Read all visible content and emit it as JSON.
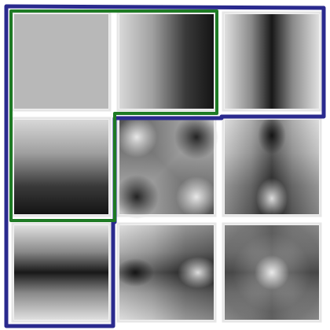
{
  "figure": {
    "description_type": "basis-function-grid",
    "rows": 3,
    "cols": 3,
    "tiles": [
      {
        "row": 0,
        "col": 0,
        "pattern": "constant"
      },
      {
        "row": 0,
        "col": 1,
        "pattern": "horizontal-gradient"
      },
      {
        "row": 0,
        "col": 2,
        "pattern": "horizontal-band"
      },
      {
        "row": 1,
        "col": 0,
        "pattern": "vertical-gradient"
      },
      {
        "row": 1,
        "col": 1,
        "pattern": "diagonal-product"
      },
      {
        "row": 1,
        "col": 2,
        "pattern": "band-times-gradient"
      },
      {
        "row": 2,
        "col": 0,
        "pattern": "vertical-band"
      },
      {
        "row": 2,
        "col": 1,
        "pattern": "gradient-times-band"
      },
      {
        "row": 2,
        "col": 2,
        "pattern": "band-product"
      }
    ],
    "groups": [
      {
        "name": "inner-group",
        "color": "#1e7a24",
        "tiles": [
          [
            0,
            0
          ],
          [
            0,
            1
          ],
          [
            1,
            0
          ]
        ]
      },
      {
        "name": "outer-group",
        "color": "#2a2a8e",
        "tiles": [
          [
            0,
            0
          ],
          [
            0,
            1
          ],
          [
            0,
            2
          ],
          [
            1,
            0
          ],
          [
            2,
            0
          ]
        ]
      }
    ],
    "colors": {
      "constant_gray": "#b8b8b8",
      "tile_border": "#e6e6e6",
      "background": "#ffffff"
    }
  }
}
